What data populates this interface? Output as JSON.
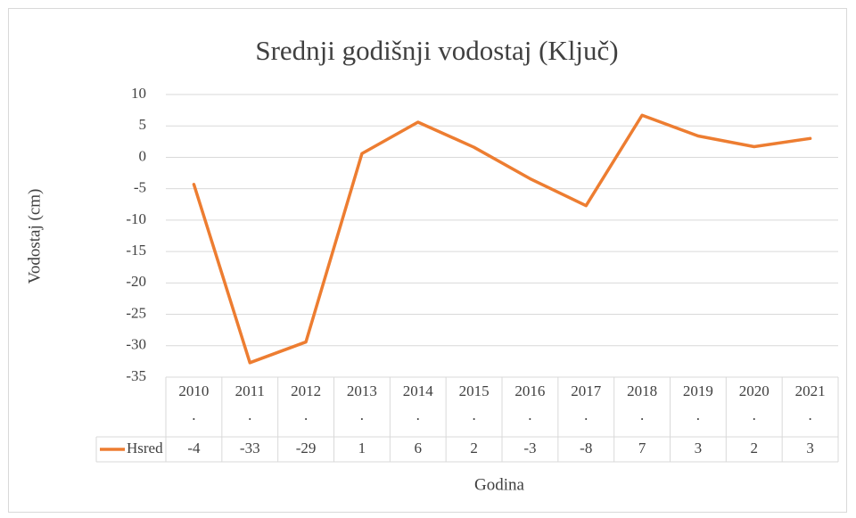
{
  "chart_data": {
    "type": "line",
    "title": "Srednji godišnji vodostaj (Ključ)",
    "x_label": "Godina",
    "y_label": "Vodostaj (cm)",
    "categories": [
      "2010.",
      "2011.",
      "2012.",
      "2013.",
      "2014.",
      "2015.",
      "2016.",
      "2017.",
      "2018.",
      "2019.",
      "2020.",
      "2021."
    ],
    "series": [
      {
        "name": "Hsred",
        "color": "#ed7d31",
        "values": [
          -4.3,
          -32.7,
          -29.4,
          0.6,
          5.6,
          1.6,
          -3.4,
          -7.7,
          6.7,
          3.4,
          1.7,
          3.0
        ],
        "value_labels": [
          "-4",
          "-33",
          "-29",
          "1",
          "6",
          "2",
          "-3",
          "-8",
          "7",
          "3",
          "2",
          "3"
        ]
      }
    ],
    "ylim": [
      -35,
      10
    ],
    "yticks": [
      -35,
      -30,
      -25,
      -20,
      -15,
      -10,
      -5,
      0,
      5,
      10
    ],
    "grid": true
  }
}
